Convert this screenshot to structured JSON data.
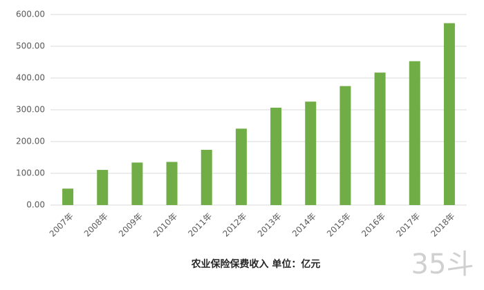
{
  "chart_data": {
    "type": "bar",
    "title": "农业保险保费收入 单位：亿元",
    "watermark": "35斗",
    "categories": [
      "2007年",
      "2008年",
      "2009年",
      "2010年",
      "2011年",
      "2012年",
      "2013年",
      "2014年",
      "2015年",
      "2016年",
      "2017年",
      "2018年"
    ],
    "values": [
      51.8,
      110.7,
      133.9,
      135.9,
      174,
      240.6,
      306.6,
      325.7,
      374.7,
      417.1,
      453,
      572.7
    ],
    "color": "#70ad47",
    "ylim": [
      0,
      600
    ],
    "yticks": [
      {
        "value": 0,
        "label": "0.00"
      },
      {
        "value": 100,
        "label": "100.00"
      },
      {
        "value": 200,
        "label": "200.00"
      },
      {
        "value": 300,
        "label": "300.00"
      },
      {
        "value": 400,
        "label": "400.00"
      },
      {
        "value": 500,
        "label": "500.00"
      },
      {
        "value": 600,
        "label": "600.00"
      }
    ],
    "grid": true
  }
}
